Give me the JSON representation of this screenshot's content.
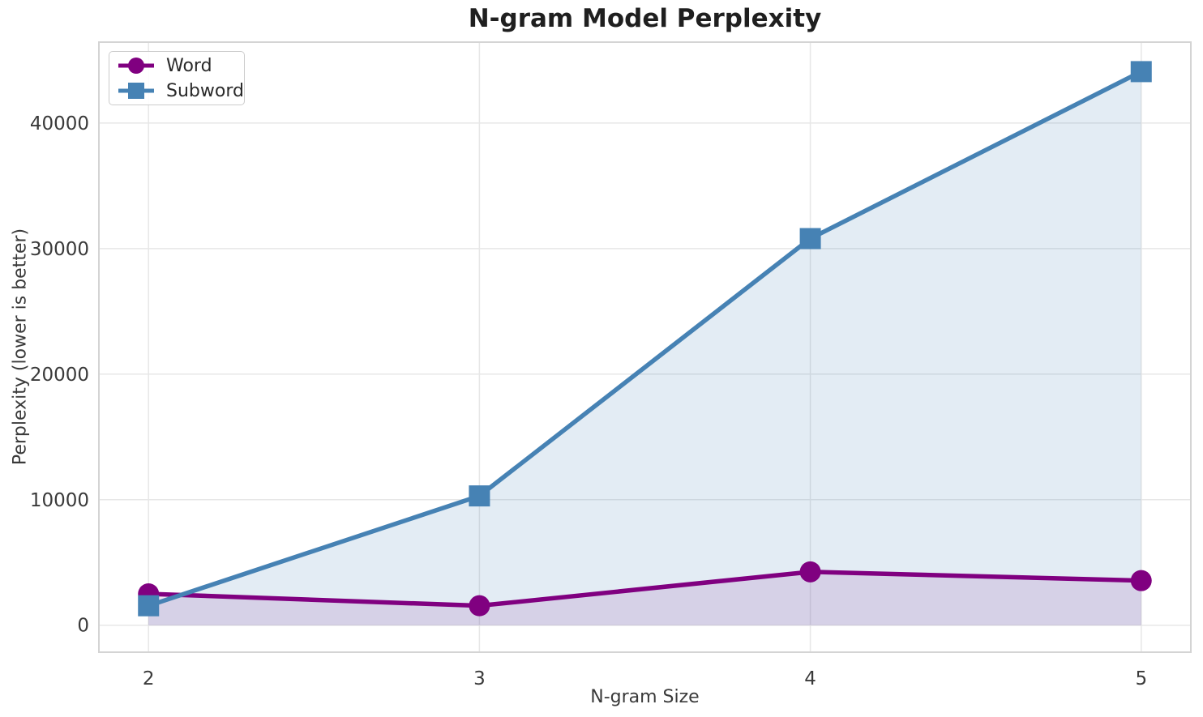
{
  "figure": {
    "title": "N-gram Model Perplexity",
    "xlabel": "N-gram Size",
    "ylabel": "Perplexity (lower is better)"
  },
  "legend": {
    "position": "upper left",
    "items": [
      {
        "label": "Word",
        "marker": "circle",
        "color": "#800080"
      },
      {
        "label": "Subword",
        "marker": "square",
        "color": "#4682B4"
      }
    ]
  },
  "chart_data": {
    "type": "line",
    "title": "N-gram Model Perplexity",
    "xlabel": "N-gram Size",
    "ylabel": "Perplexity (lower is better)",
    "x": [
      2,
      3,
      4,
      5
    ],
    "series": [
      {
        "name": "Word",
        "values": [
          2500,
          1550,
          4250,
          3550
        ],
        "color": "#800080",
        "marker": "circle",
        "fill_opacity": 0.12
      },
      {
        "name": "Subword",
        "values": [
          1550,
          10300,
          30800,
          44100
        ],
        "color": "#4682B4",
        "marker": "square",
        "fill_opacity": 0.15
      }
    ],
    "xticks": [
      2,
      3,
      4,
      5
    ],
    "yticks": [
      0,
      10000,
      20000,
      30000,
      40000
    ],
    "xlim": [
      1.85,
      5.15
    ],
    "ylim": [
      -2150,
      46450
    ],
    "grid": true,
    "area_fill_to": 0,
    "legend_position": "upper left",
    "style": {
      "grid_color": "#e7e7e7",
      "spine_color": "#d4d4d4",
      "tick_color": "#3a3a3a",
      "line_width": 5.5,
      "marker_size": 26
    }
  }
}
